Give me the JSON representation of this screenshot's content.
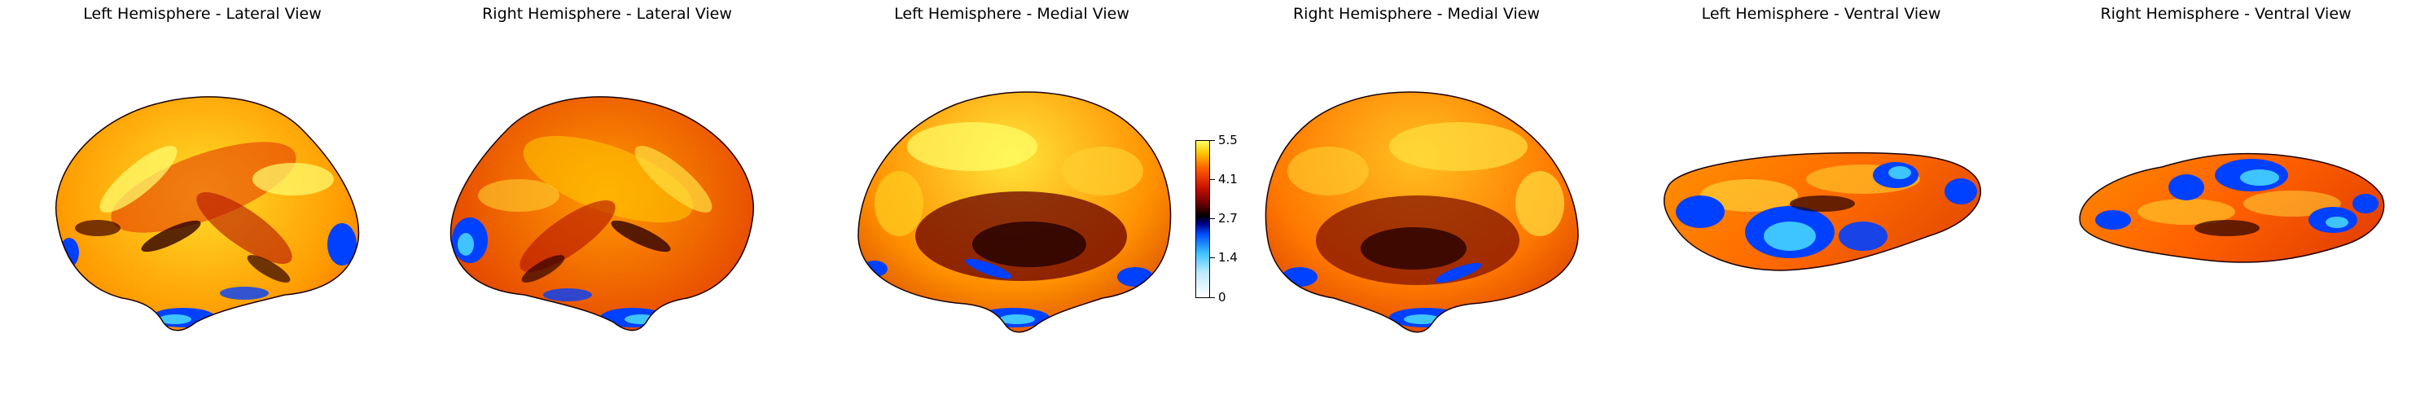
{
  "panels": [
    {
      "title": "Left Hemisphere - Lateral View",
      "view": "lateral",
      "hemisphere": "left"
    },
    {
      "title": "Right Hemisphere - Lateral View",
      "view": "lateral",
      "hemisphere": "right"
    },
    {
      "title": "Left Hemisphere - Medial View",
      "view": "medial",
      "hemisphere": "left"
    },
    {
      "title": "Right Hemisphere - Medial View",
      "view": "medial",
      "hemisphere": "right"
    },
    {
      "title": "Left Hemisphere - Ventral View",
      "view": "ventral",
      "hemisphere": "left"
    },
    {
      "title": "Right Hemisphere - Ventral View",
      "view": "ventral",
      "hemisphere": "right"
    }
  ],
  "colorbar": {
    "ticks": [
      "5.5",
      "4.1",
      "2.7",
      "1.4",
      "0"
    ],
    "range": [
      0,
      5.5
    ],
    "colormap": [
      "#ffffff",
      "#3ec4ff",
      "#0050ff",
      "#000000",
      "#c81000",
      "#ff5a00",
      "#ffff66"
    ]
  },
  "colors": {
    "high": "#ffff66",
    "mid_high": "#ff5a00",
    "mid": "#c81000",
    "neutral": "#000000",
    "low": "#0050ff",
    "lowest": "#3ec4ff"
  }
}
